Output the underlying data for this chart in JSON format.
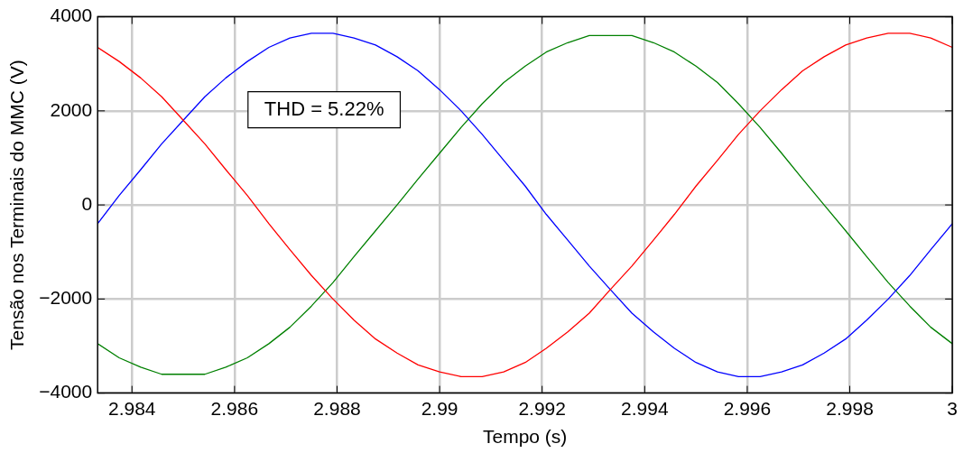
{
  "chart_data": {
    "type": "line",
    "xlabel": "Tempo (s)",
    "ylabel": "Tensão nos Terminais do MMC (V)",
    "x": [
      2.98333,
      2.98375,
      2.98417,
      2.98458,
      2.985,
      2.98542,
      2.98583,
      2.98625,
      2.98667,
      2.98708,
      2.9875,
      2.98792,
      2.98833,
      2.98875,
      2.98917,
      2.98958,
      2.99,
      2.99042,
      2.99083,
      2.99125,
      2.99167,
      2.99208,
      2.9925,
      2.99292,
      2.99333,
      2.99375,
      2.99417,
      2.99458,
      2.995,
      2.99542,
      2.99583,
      2.99625,
      2.99667,
      2.99708,
      2.9975,
      2.99792,
      2.99833,
      2.99875,
      2.99917,
      2.99958,
      3.0
    ],
    "series": [
      {
        "color": "#ff0000",
        "values": [
          3350,
          3050,
          2700,
          2300,
          1800,
          1300,
          750,
          200,
          -400,
          -950,
          -1500,
          -2000,
          -2450,
          -2850,
          -3150,
          -3400,
          -3550,
          -3650,
          -3650,
          -3550,
          -3350,
          -3050,
          -2700,
          -2300,
          -1800,
          -1300,
          -750,
          -200,
          400,
          950,
          1500,
          2000,
          2450,
          2850,
          3150,
          3400,
          3550,
          3650,
          3650,
          3550,
          3350
        ]
      },
      {
        "color": "#0000ff",
        "values": [
          -400,
          200,
          750,
          1300,
          1800,
          2300,
          2700,
          3050,
          3350,
          3550,
          3650,
          3650,
          3550,
          3400,
          3150,
          2850,
          2450,
          2000,
          1500,
          950,
          400,
          -200,
          -750,
          -1300,
          -1800,
          -2300,
          -2700,
          -3050,
          -3350,
          -3550,
          -3650,
          -3650,
          -3550,
          -3400,
          -3150,
          -2850,
          -2450,
          -2000,
          -1500,
          -950,
          -400
        ]
      },
      {
        "color": "#008000",
        "values": [
          -2950,
          -3250,
          -3450,
          -3600,
          -3600,
          -3600,
          -3450,
          -3250,
          -2950,
          -2600,
          -2150,
          -1650,
          -1100,
          -550,
          0,
          550,
          1100,
          1650,
          2150,
          2600,
          2950,
          3250,
          3450,
          3600,
          3600,
          3600,
          3450,
          3250,
          2950,
          2600,
          2150,
          1650,
          1100,
          550,
          0,
          -550,
          -1100,
          -1650,
          -2150,
          -2600,
          -2950
        ]
      }
    ],
    "xlim": [
      2.98333,
      3.0
    ],
    "xticks": [
      2.984,
      2.986,
      2.988,
      2.99,
      2.992,
      2.994,
      2.996,
      2.998,
      3
    ],
    "ylim": [
      -4000,
      4000
    ],
    "yticks": [
      {
        "value": -4000,
        "label": "−4000"
      },
      {
        "value": -2000,
        "label": "−2000"
      },
      0,
      2000,
      4000
    ],
    "annotations": [
      "THD = 5.22%"
    ],
    "grid": true,
    "legend": false,
    "marker": "none",
    "line_style": "solid"
  }
}
